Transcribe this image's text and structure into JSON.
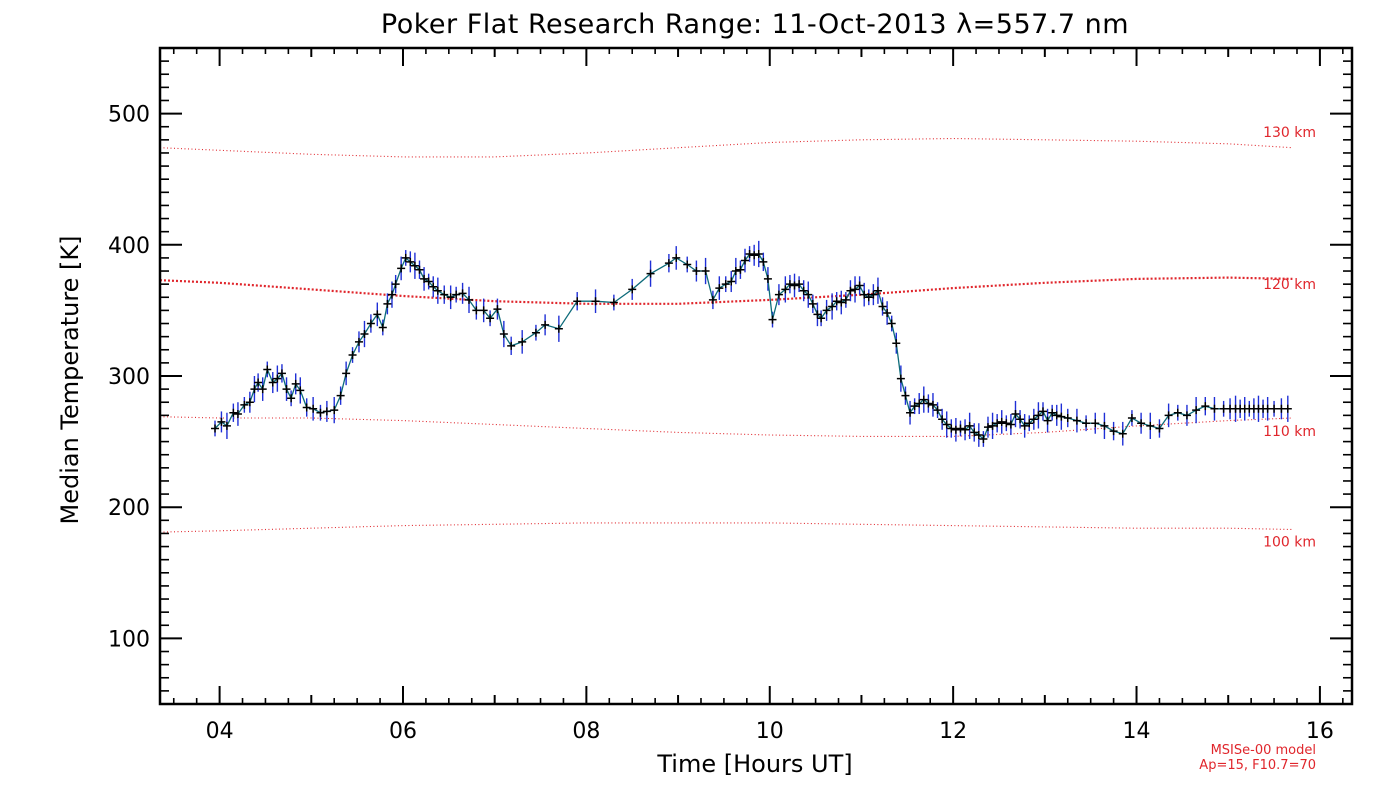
{
  "chart_data": {
    "type": "line",
    "title": "Poker Flat Research Range: 11-Oct-2013 λ=557.7 nm",
    "xlabel": "Time [Hours UT]",
    "ylabel": "Median Temperature [K]",
    "xlim": [
      3.35,
      16.35
    ],
    "ylim": [
      50,
      550
    ],
    "x_ticks": [
      4,
      6,
      8,
      10,
      12,
      14,
      16
    ],
    "x_tick_labels": [
      "04",
      "06",
      "08",
      "10",
      "12",
      "14",
      "16"
    ],
    "y_ticks": [
      100,
      200,
      300,
      400,
      500
    ],
    "y_tick_labels": [
      "100",
      "200",
      "300",
      "400",
      "500"
    ],
    "colors": {
      "data_line": "#0d6b7a",
      "markers": "#000000",
      "error_bars": "#1f2fd6",
      "model": "#e0262c"
    },
    "series": [
      {
        "name": "Median Temperature",
        "x": [
          3.95,
          4.02,
          4.08,
          4.15,
          4.2,
          4.27,
          4.33,
          4.38,
          4.42,
          4.47,
          4.52,
          4.58,
          4.63,
          4.68,
          4.73,
          4.78,
          4.83,
          4.88,
          4.95,
          5.02,
          5.1,
          5.17,
          5.25,
          5.32,
          5.38,
          5.45,
          5.52,
          5.58,
          5.65,
          5.72,
          5.78,
          5.83,
          5.88,
          5.92,
          5.98,
          6.03,
          6.08,
          6.13,
          6.18,
          6.23,
          6.28,
          6.33,
          6.38,
          6.45,
          6.52,
          6.58,
          6.65,
          6.72,
          6.8,
          6.88,
          6.95,
          7.03,
          7.1,
          7.18,
          7.3,
          7.45,
          7.55,
          7.7,
          7.9,
          8.1,
          8.3,
          8.5,
          8.7,
          8.9,
          8.98,
          9.1,
          9.2,
          9.3,
          9.38,
          9.45,
          9.52,
          9.58,
          9.63,
          9.68,
          9.73,
          9.78,
          9.83,
          9.88,
          9.93,
          9.98,
          10.03,
          10.1,
          10.17,
          10.22,
          10.27,
          10.32,
          10.37,
          10.42,
          10.47,
          10.52,
          10.56,
          10.62,
          10.68,
          10.73,
          10.78,
          10.83,
          10.88,
          10.93,
          10.98,
          11.03,
          11.08,
          11.13,
          11.18,
          11.23,
          11.28,
          11.33,
          11.38,
          11.43,
          11.48,
          11.53,
          11.58,
          11.63,
          11.68,
          11.73,
          11.78,
          11.83,
          11.88,
          11.93,
          11.98,
          12.03,
          12.08,
          12.13,
          12.18,
          12.23,
          12.28,
          12.33,
          12.38,
          12.43,
          12.48,
          12.53,
          12.58,
          12.63,
          12.68,
          12.73,
          12.78,
          12.83,
          12.88,
          12.93,
          12.98,
          13.03,
          13.08,
          13.13,
          13.18,
          13.25,
          13.35,
          13.45,
          13.55,
          13.65,
          13.75,
          13.85,
          13.95,
          14.05,
          14.15,
          14.25,
          14.35,
          14.45,
          14.55,
          14.65,
          14.75,
          14.85,
          14.95,
          15.02,
          15.08,
          15.13,
          15.18,
          15.23,
          15.28,
          15.33,
          15.38,
          15.43,
          15.5,
          15.58,
          15.65
        ],
        "y": [
          260,
          265,
          262,
          272,
          271,
          278,
          280,
          290,
          295,
          290,
          305,
          295,
          298,
          302,
          290,
          283,
          294,
          289,
          276,
          275,
          272,
          273,
          274,
          285,
          302,
          316,
          326,
          332,
          340,
          347,
          337,
          355,
          362,
          370,
          382,
          390,
          387,
          384,
          381,
          374,
          372,
          368,
          365,
          362,
          360,
          362,
          363,
          358,
          350,
          350,
          344,
          351,
          332,
          323,
          326,
          333,
          339,
          336,
          357,
          357,
          356,
          366,
          378,
          386,
          390,
          385,
          380,
          380,
          358,
          367,
          370,
          372,
          380,
          381,
          388,
          393,
          392,
          393,
          387,
          374,
          343,
          362,
          366,
          370,
          369,
          370,
          365,
          362,
          355,
          347,
          344,
          350,
          353,
          357,
          356,
          358,
          365,
          366,
          369,
          362,
          360,
          362,
          365,
          353,
          348,
          340,
          325,
          298,
          285,
          272,
          277,
          279,
          282,
          279,
          278,
          274,
          267,
          263,
          260,
          259,
          260,
          259,
          262,
          257,
          255,
          252,
          261,
          262,
          264,
          265,
          264,
          263,
          271,
          267,
          262,
          264,
          267,
          270,
          273,
          266,
          272,
          270,
          269,
          268,
          266,
          264,
          264,
          262,
          258,
          256,
          268,
          264,
          262,
          260,
          270,
          272,
          270,
          274,
          277,
          275,
          275,
          275,
          275,
          275,
          275,
          275,
          275,
          275,
          275,
          275,
          275,
          275,
          275
        ]
      }
    ],
    "model_curves": [
      {
        "label": "130 km",
        "x": [
          3.35,
          4,
          5,
          6,
          7,
          8,
          9,
          10,
          11,
          12,
          13,
          14,
          15,
          15.7
        ],
        "y": [
          474,
          472,
          469,
          467,
          467,
          470,
          474,
          478,
          480,
          481,
          480,
          479,
          477,
          474
        ]
      },
      {
        "label": "120 km",
        "x": [
          3.35,
          4,
          5,
          6,
          7,
          8,
          9,
          10,
          11,
          12,
          13,
          14,
          15,
          15.7
        ],
        "y": [
          373,
          371,
          366,
          361,
          357,
          355,
          355,
          358,
          362,
          367,
          371,
          374,
          375,
          374
        ]
      },
      {
        "label": "110 km",
        "x": [
          3.35,
          4,
          5,
          6,
          7,
          8,
          9,
          10,
          11,
          12,
          13,
          14,
          15,
          15.7
        ],
        "y": [
          269,
          268,
          268,
          266,
          263,
          260,
          257,
          255,
          254,
          254,
          257,
          262,
          266,
          268
        ]
      },
      {
        "label": "100 km",
        "x": [
          3.35,
          4,
          5,
          6,
          7,
          8,
          9,
          10,
          11,
          12,
          13,
          14,
          15,
          15.7
        ],
        "y": [
          181,
          182,
          184,
          186,
          187,
          188,
          188,
          188,
          187,
          186,
          185,
          184,
          184,
          183
        ]
      }
    ],
    "model_label_y": [
      486,
      370,
      258,
      174
    ],
    "notes": [
      "MSISe-00 model",
      "Ap=15, F10.7=70"
    ]
  }
}
